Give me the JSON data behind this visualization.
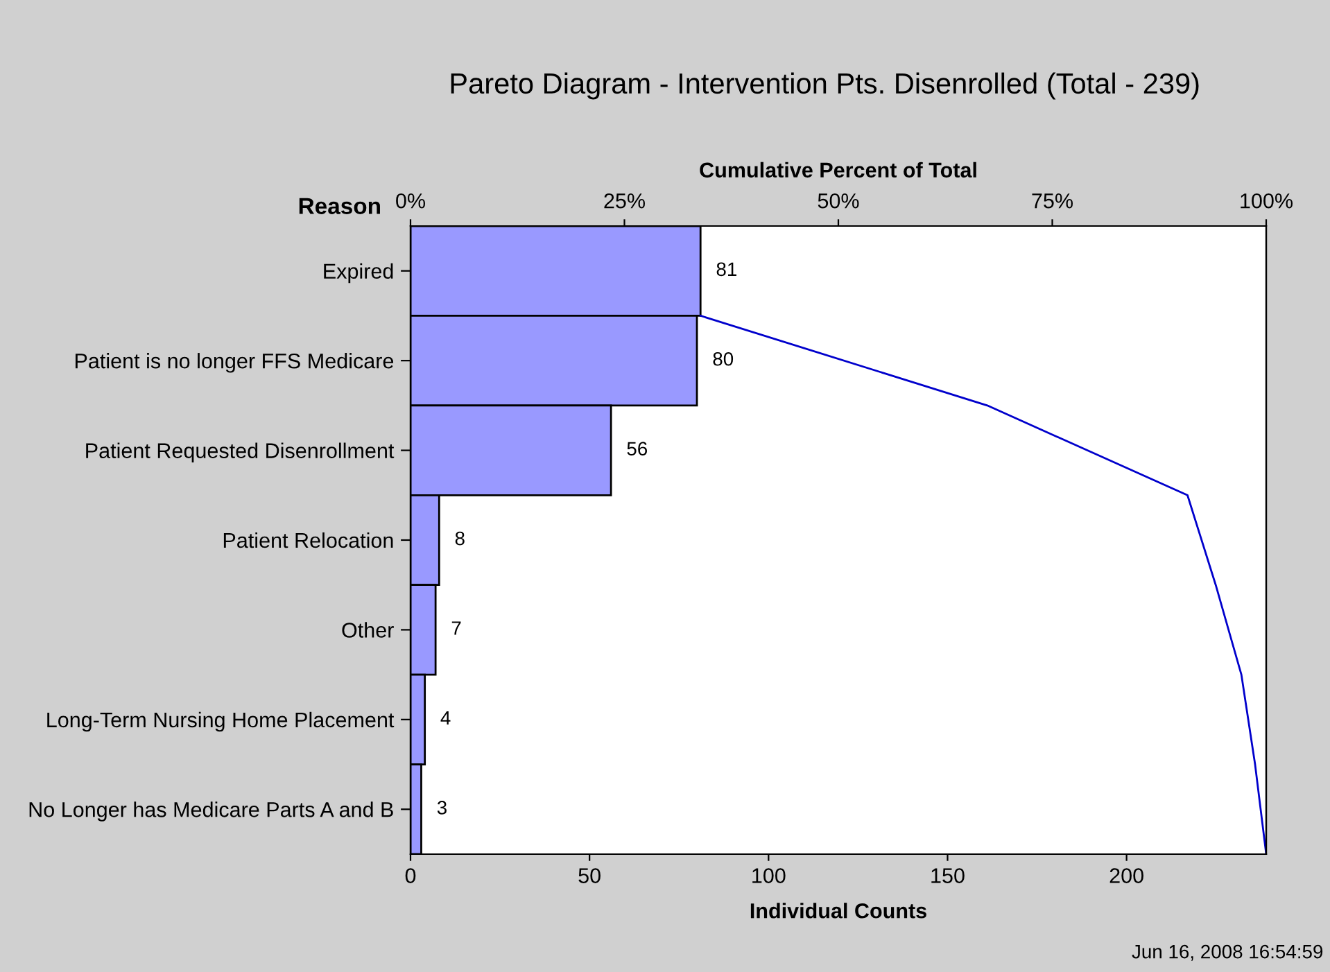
{
  "chart_data": {
    "type": "bar",
    "orientation": "horizontal",
    "title": "Pareto Diagram - Intervention Pts. Disenrolled (Total - 239)",
    "xlabel": "Individual Counts",
    "x2label": "Cumulative Percent of Total",
    "ylabel": "Reason",
    "categories": [
      "Expired",
      "Patient is no longer FFS Medicare",
      "Patient Requested Disenrollment",
      "Patient Relocation",
      "Other",
      "Long-Term Nursing Home Placement",
      "No Longer has Medicare Parts A and B"
    ],
    "series": [
      {
        "type": "bar",
        "color": "#9999ff",
        "values": [
          81,
          80,
          56,
          8,
          7,
          4,
          3
        ],
        "value_labels": [
          "81",
          "80",
          "56",
          "8",
          "7",
          "4",
          "3"
        ]
      },
      {
        "type": "line",
        "axis": "x2",
        "color": "#0000cc",
        "values": [
          33.9,
          67.4,
          90.8,
          94.1,
          97.1,
          98.7,
          100
        ]
      }
    ],
    "xlim": [
      0,
      239
    ],
    "xticks": [
      0,
      50,
      100,
      150,
      200
    ],
    "x2lim": [
      0,
      100
    ],
    "x2ticks": [
      {
        "value": 0,
        "label": "0%"
      },
      {
        "value": 25,
        "label": "25%"
      },
      {
        "value": 50,
        "label": "50%"
      },
      {
        "value": 75,
        "label": "75%"
      },
      {
        "value": 100,
        "label": "100%"
      }
    ],
    "grid": false,
    "legend": false,
    "annotations": [
      "Jun 16, 2008 16:54:59"
    ]
  }
}
